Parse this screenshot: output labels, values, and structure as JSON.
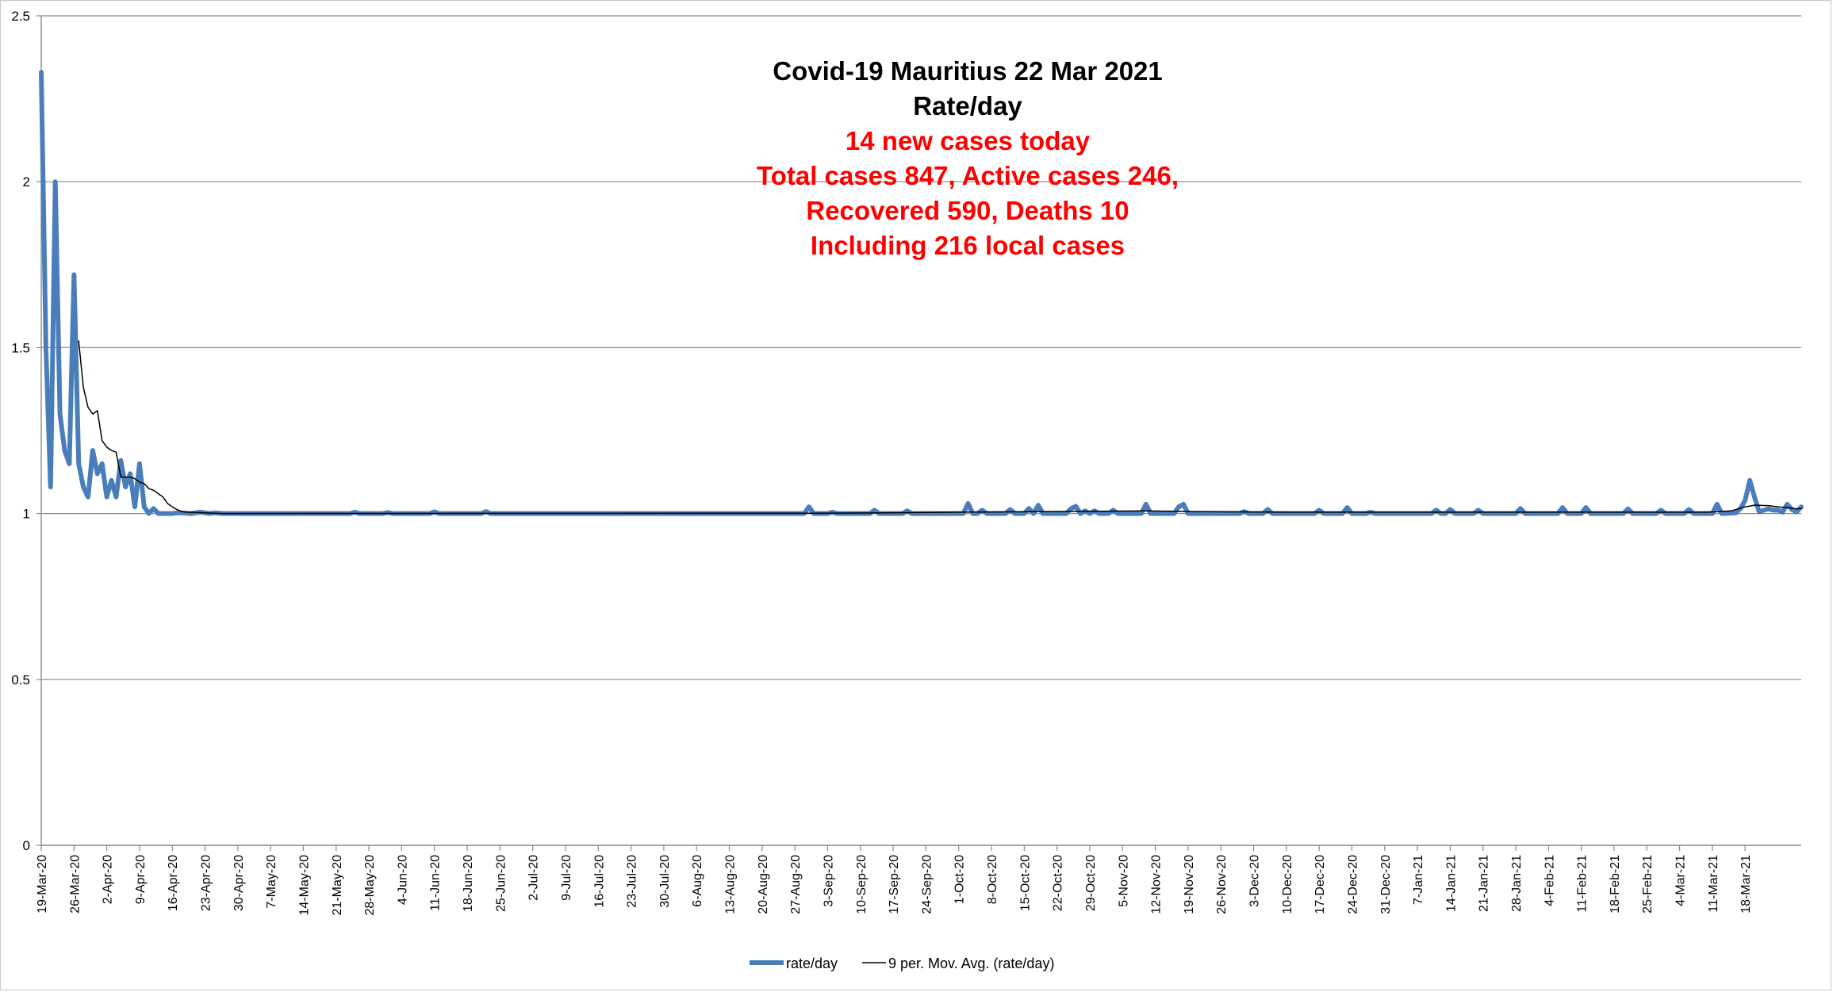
{
  "chart_data": {
    "type": "line",
    "title": "Covid-19 Mauritius 22 Mar 2021",
    "subtitle": "Rate/day",
    "annotations": [
      "14 new cases today",
      "Total cases 847, Active cases 246,",
      "Recovered 590, Deaths 10",
      "Including 216 local cases"
    ],
    "xlabel": "",
    "ylabel": "",
    "ylim": [
      0,
      2.5
    ],
    "yticks": [
      0,
      0.5,
      1,
      1.5,
      2,
      2.5
    ],
    "ytick_labels": [
      "0",
      "0.5",
      "1",
      "1.5",
      "2",
      "2.5"
    ],
    "x_start": "19-Mar-20",
    "x_end": "22-Mar-21",
    "x_tick_labels": [
      "19-Mar-20",
      "26-Mar-20",
      "2-Apr-20",
      "9-Apr-20",
      "16-Apr-20",
      "23-Apr-20",
      "30-Apr-20",
      "7-May-20",
      "14-May-20",
      "21-May-20",
      "28-May-20",
      "4-Jun-20",
      "11-Jun-20",
      "18-Jun-20",
      "25-Jun-20",
      "2-Jul-20",
      "9-Jul-20",
      "16-Jul-20",
      "23-Jul-20",
      "30-Jul-20",
      "6-Aug-20",
      "13-Aug-20",
      "20-Aug-20",
      "27-Aug-20",
      "3-Sep-20",
      "10-Sep-20",
      "17-Sep-20",
      "24-Sep-20",
      "1-Oct-20",
      "8-Oct-20",
      "15-Oct-20",
      "22-Oct-20",
      "29-Oct-20",
      "5-Nov-20",
      "12-Nov-20",
      "19-Nov-20",
      "26-Nov-20",
      "3-Dec-20",
      "10-Dec-20",
      "17-Dec-20",
      "24-Dec-20",
      "31-Dec-20",
      "7-Jan-21",
      "14-Jan-21",
      "21-Jan-21",
      "28-Jan-21",
      "4-Feb-21",
      "11-Feb-21",
      "18-Feb-21",
      "25-Feb-21",
      "4-Mar-21",
      "11-Mar-21",
      "18-Mar-21"
    ],
    "grid": true,
    "legend_position": "bottom",
    "series": [
      {
        "name": "rate/day",
        "color": "#4a7ebb",
        "style": "thick",
        "points": [
          [
            "19-Mar-20",
            2.33
          ],
          [
            "20-Mar-20",
            1.5
          ],
          [
            "21-Mar-20",
            1.08
          ],
          [
            "22-Mar-20",
            2.0
          ],
          [
            "23-Mar-20",
            1.3
          ],
          [
            "24-Mar-20",
            1.19
          ],
          [
            "25-Mar-20",
            1.15
          ],
          [
            "26-Mar-20",
            1.72
          ],
          [
            "27-Mar-20",
            1.15
          ],
          [
            "28-Mar-20",
            1.08
          ],
          [
            "29-Mar-20",
            1.05
          ],
          [
            "30-Mar-20",
            1.19
          ],
          [
            "31-Mar-20",
            1.12
          ],
          [
            "1-Apr-20",
            1.15
          ],
          [
            "2-Apr-20",
            1.05
          ],
          [
            "3-Apr-20",
            1.1
          ],
          [
            "4-Apr-20",
            1.05
          ],
          [
            "5-Apr-20",
            1.16
          ],
          [
            "6-Apr-20",
            1.08
          ],
          [
            "7-Apr-20",
            1.12
          ],
          [
            "8-Apr-20",
            1.02
          ],
          [
            "9-Apr-20",
            1.15
          ],
          [
            "10-Apr-20",
            1.02
          ],
          [
            "11-Apr-20",
            1.0
          ],
          [
            "12-Apr-20",
            1.015
          ],
          [
            "13-Apr-20",
            1.0
          ],
          [
            "14-Apr-20",
            1.0
          ],
          [
            "15-Apr-20",
            1.0
          ],
          [
            "16-Apr-20",
            1.0
          ],
          [
            "17-Apr-20",
            1.002
          ],
          [
            "18-Apr-20",
            1.002
          ],
          [
            "20-Apr-20",
            1.0
          ],
          [
            "22-Apr-20",
            1.004
          ],
          [
            "24-Apr-20",
            1.0
          ],
          [
            "25-Apr-20",
            1.002
          ],
          [
            "27-Apr-20",
            1.0
          ],
          [
            "24-May-20",
            1.0
          ],
          [
            "25-May-20",
            1.004
          ],
          [
            "26-May-20",
            1.0
          ],
          [
            "31-May-20",
            1.0
          ],
          [
            "1-Jun-20",
            1.003
          ],
          [
            "2-Jun-20",
            1.0
          ],
          [
            "10-Jun-20",
            1.0
          ],
          [
            "11-Jun-20",
            1.005
          ],
          [
            "12-Jun-20",
            1.0
          ],
          [
            "21-Jun-20",
            1.0
          ],
          [
            "22-Jun-20",
            1.006
          ],
          [
            "23-Jun-20",
            1.0
          ],
          [
            "29-Aug-20",
            1.0
          ],
          [
            "30-Aug-20",
            1.02
          ],
          [
            "31-Aug-20",
            1.0
          ],
          [
            "3-Sep-20",
            1.0
          ],
          [
            "4-Sep-20",
            1.004
          ],
          [
            "5-Sep-20",
            1.0
          ],
          [
            "12-Sep-20",
            1.0
          ],
          [
            "13-Sep-20",
            1.01
          ],
          [
            "14-Sep-20",
            1.0
          ],
          [
            "19-Sep-20",
            1.0
          ],
          [
            "20-Sep-20",
            1.008
          ],
          [
            "21-Sep-20",
            1.0
          ],
          [
            "2-Oct-20",
            1.0
          ],
          [
            "3-Oct-20",
            1.03
          ],
          [
            "4-Oct-20",
            1.0
          ],
          [
            "5-Oct-20",
            1.0
          ],
          [
            "6-Oct-20",
            1.01
          ],
          [
            "7-Oct-20",
            1.0
          ],
          [
            "11-Oct-20",
            1.0
          ],
          [
            "12-Oct-20",
            1.012
          ],
          [
            "13-Oct-20",
            1.0
          ],
          [
            "15-Oct-20",
            1.0
          ],
          [
            "16-Oct-20",
            1.015
          ],
          [
            "17-Oct-20",
            1.0
          ],
          [
            "18-Oct-20",
            1.025
          ],
          [
            "19-Oct-20",
            1.0
          ],
          [
            "24-Oct-20",
            1.0
          ],
          [
            "25-Oct-20",
            1.015
          ],
          [
            "26-Oct-20",
            1.022
          ],
          [
            "27-Oct-20",
            1.0
          ],
          [
            "28-Oct-20",
            1.008
          ],
          [
            "29-Oct-20",
            1.0
          ],
          [
            "30-Oct-20",
            1.008
          ],
          [
            "31-Oct-20",
            1.0
          ],
          [
            "2-Nov-20",
            1.0
          ],
          [
            "3-Nov-20",
            1.01
          ],
          [
            "4-Nov-20",
            1.0
          ],
          [
            "9-Nov-20",
            1.0
          ],
          [
            "10-Nov-20",
            1.028
          ],
          [
            "11-Nov-20",
            1.0
          ],
          [
            "16-Nov-20",
            1.0
          ],
          [
            "17-Nov-20",
            1.02
          ],
          [
            "18-Nov-20",
            1.028
          ],
          [
            "19-Nov-20",
            1.0
          ],
          [
            "30-Nov-20",
            1.0
          ],
          [
            "1-Dec-20",
            1.006
          ],
          [
            "2-Dec-20",
            1.0
          ],
          [
            "5-Dec-20",
            1.0
          ],
          [
            "6-Dec-20",
            1.012
          ],
          [
            "7-Dec-20",
            1.0
          ],
          [
            "16-Dec-20",
            1.0
          ],
          [
            "17-Dec-20",
            1.01
          ],
          [
            "18-Dec-20",
            1.0
          ],
          [
            "22-Dec-20",
            1.0
          ],
          [
            "23-Dec-20",
            1.018
          ],
          [
            "24-Dec-20",
            1.0
          ],
          [
            "27-Dec-20",
            1.0
          ],
          [
            "28-Dec-20",
            1.004
          ],
          [
            "29-Dec-20",
            1.0
          ],
          [
            "10-Jan-21",
            1.0
          ],
          [
            "11-Jan-21",
            1.01
          ],
          [
            "12-Jan-21",
            1.0
          ],
          [
            "13-Jan-21",
            1.0
          ],
          [
            "14-Jan-21",
            1.012
          ],
          [
            "15-Jan-21",
            1.0
          ],
          [
            "19-Jan-21",
            1.0
          ],
          [
            "20-Jan-21",
            1.01
          ],
          [
            "21-Jan-21",
            1.0
          ],
          [
            "28-Jan-21",
            1.0
          ],
          [
            "29-Jan-21",
            1.015
          ],
          [
            "30-Jan-21",
            1.0
          ],
          [
            "6-Feb-21",
            1.0
          ],
          [
            "7-Feb-21",
            1.018
          ],
          [
            "8-Feb-21",
            1.0
          ],
          [
            "11-Feb-21",
            1.0
          ],
          [
            "12-Feb-21",
            1.018
          ],
          [
            "13-Feb-21",
            1.0
          ],
          [
            "20-Feb-21",
            1.0
          ],
          [
            "21-Feb-21",
            1.014
          ],
          [
            "22-Feb-21",
            1.0
          ],
          [
            "27-Feb-21",
            1.0
          ],
          [
            "28-Feb-21",
            1.01
          ],
          [
            "1-Mar-21",
            1.0
          ],
          [
            "5-Mar-21",
            1.0
          ],
          [
            "6-Mar-21",
            1.012
          ],
          [
            "7-Mar-21",
            1.0
          ],
          [
            "11-Mar-21",
            1.0
          ],
          [
            "12-Mar-21",
            1.028
          ],
          [
            "13-Mar-21",
            1.0
          ],
          [
            "16-Mar-21",
            1.002
          ],
          [
            "17-Mar-21",
            1.015
          ],
          [
            "18-Mar-21",
            1.04
          ],
          [
            "19-Mar-21",
            1.1
          ],
          [
            "20-Mar-21",
            1.05
          ],
          [
            "21-Mar-21",
            1.005
          ],
          [
            "22-Mar-21",
            1.01
          ],
          [
            "23-Mar-21",
            1.014
          ],
          [
            "24-Mar-21",
            1.01
          ],
          [
            "25-Mar-21",
            1.01
          ],
          [
            "26-Mar-21",
            1.004
          ],
          [
            "27-Mar-21",
            1.028
          ],
          [
            "28-Mar-21",
            1.012
          ],
          [
            "29-Mar-21",
            1.005
          ],
          [
            "30-Mar-21",
            1.02
          ]
        ]
      },
      {
        "name": "9 per. Mov. Avg. (rate/day)",
        "color": "#000000",
        "style": "thin",
        "points": [
          [
            "27-Mar-20",
            1.52
          ],
          [
            "28-Mar-20",
            1.38
          ],
          [
            "29-Mar-20",
            1.32
          ],
          [
            "30-Mar-20",
            1.3
          ],
          [
            "31-Mar-20",
            1.31
          ],
          [
            "1-Apr-20",
            1.22
          ],
          [
            "2-Apr-20",
            1.2
          ],
          [
            "3-Apr-20",
            1.19
          ],
          [
            "4-Apr-20",
            1.185
          ],
          [
            "5-Apr-20",
            1.11
          ],
          [
            "6-Apr-20",
            1.11
          ],
          [
            "7-Apr-20",
            1.11
          ],
          [
            "8-Apr-20",
            1.105
          ],
          [
            "9-Apr-20",
            1.095
          ],
          [
            "10-Apr-20",
            1.09
          ],
          [
            "11-Apr-20",
            1.075
          ],
          [
            "12-Apr-20",
            1.07
          ],
          [
            "13-Apr-20",
            1.06
          ],
          [
            "14-Apr-20",
            1.05
          ],
          [
            "15-Apr-20",
            1.03
          ],
          [
            "16-Apr-20",
            1.02
          ],
          [
            "17-Apr-20",
            1.012
          ],
          [
            "18-Apr-20",
            1.006
          ],
          [
            "19-Apr-20",
            1.004
          ],
          [
            "21-Apr-20",
            1.003
          ],
          [
            "23-Apr-20",
            1.002
          ],
          [
            "25-Apr-20",
            1.001
          ],
          [
            "27-Apr-20",
            1.0
          ],
          [
            "1-Sep-20",
            1.001
          ],
          [
            "15-Sep-20",
            1.002
          ],
          [
            "1-Oct-20",
            1.004
          ],
          [
            "20-Oct-20",
            1.006
          ],
          [
            "10-Nov-20",
            1.008
          ],
          [
            "20-Nov-20",
            1.006
          ],
          [
            "10-Dec-20",
            1.004
          ],
          [
            "1-Jan-21",
            1.004
          ],
          [
            "1-Feb-21",
            1.004
          ],
          [
            "1-Mar-21",
            1.004
          ],
          [
            "10-Mar-21",
            1.004
          ],
          [
            "15-Mar-21",
            1.008
          ],
          [
            "18-Mar-21",
            1.02
          ],
          [
            "20-Mar-21",
            1.025
          ],
          [
            "23-Mar-21",
            1.024
          ],
          [
            "25-Mar-21",
            1.02
          ],
          [
            "27-Mar-21",
            1.018
          ],
          [
            "29-Mar-21",
            1.014
          ],
          [
            "30-Mar-21",
            1.015
          ]
        ]
      }
    ]
  }
}
